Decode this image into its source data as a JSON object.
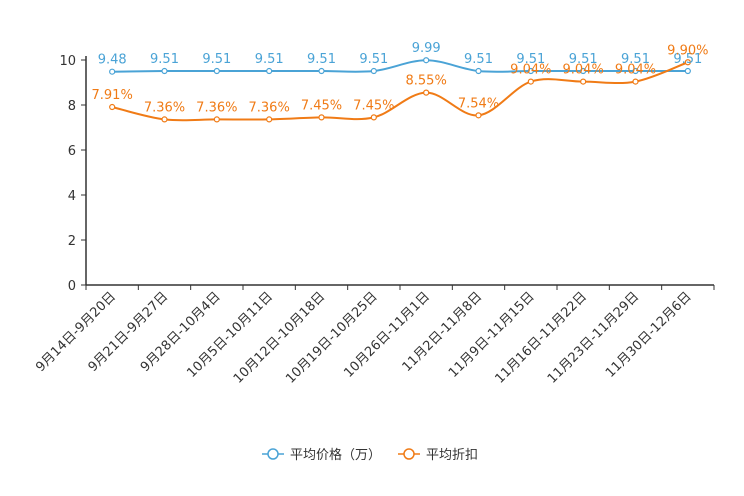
{
  "chart_data": {
    "type": "line",
    "title": "",
    "xlabel": "",
    "ylabel": "",
    "ylim": [
      0,
      10
    ],
    "yticks": [
      0,
      2,
      4,
      6,
      8,
      10
    ],
    "grid": false,
    "legend_position": "bottom-center",
    "categories": [
      "9月14日-9月20日",
      "9月21日-9月27日",
      "9月28日-10月4日",
      "10月5日-10月11日",
      "10月12日-10月18日",
      "10月19日-10月25日",
      "10月26日-11月1日",
      "11月2日-11月8日",
      "11月9日-11月15日",
      "11月16日-11月22日",
      "11月23日-11月29日",
      "11月30日-12月6日"
    ],
    "series": [
      {
        "name": "平均价格（万）",
        "color": "#4aa3d6",
        "values": [
          9.48,
          9.51,
          9.51,
          9.51,
          9.51,
          9.51,
          9.99,
          9.51,
          9.51,
          9.51,
          9.51,
          9.51
        ],
        "labels": [
          "9.48",
          "9.51",
          "9.51",
          "9.51",
          "9.51",
          "9.51",
          "9.99",
          "9.51",
          "9.51",
          "9.51",
          "9.51",
          "9.51"
        ]
      },
      {
        "name": "平均折扣",
        "color": "#f07b16",
        "values": [
          7.91,
          7.36,
          7.36,
          7.36,
          7.45,
          7.45,
          8.55,
          7.54,
          9.04,
          9.04,
          9.04,
          9.9
        ],
        "labels": [
          "7.91%",
          "7.36%",
          "7.36%",
          "7.36%",
          "7.45%",
          "7.45%",
          "8.55%",
          "7.54%",
          "9.04%",
          "9.04%",
          "9.04%",
          "9.90%"
        ]
      }
    ]
  }
}
